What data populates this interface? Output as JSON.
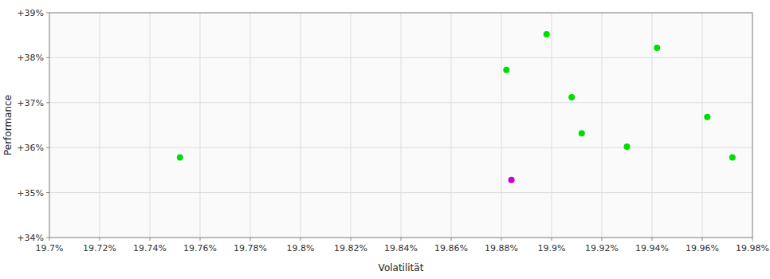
{
  "chart_data": {
    "type": "scatter",
    "xlabel": "Volatilität",
    "ylabel": "Performance",
    "xlim": [
      19.7,
      19.98
    ],
    "ylim": [
      34.0,
      39.0
    ],
    "xticks": [
      {
        "value": 19.7,
        "label": "19.7%"
      },
      {
        "value": 19.72,
        "label": "19.72%"
      },
      {
        "value": 19.74,
        "label": "19.74%"
      },
      {
        "value": 19.76,
        "label": "19.76%"
      },
      {
        "value": 19.78,
        "label": "19.78%"
      },
      {
        "value": 19.8,
        "label": "19.8%"
      },
      {
        "value": 19.82,
        "label": "19.82%"
      },
      {
        "value": 19.84,
        "label": "19.84%"
      },
      {
        "value": 19.86,
        "label": "19.86%"
      },
      {
        "value": 19.88,
        "label": "19.88%"
      },
      {
        "value": 19.9,
        "label": "19.9%"
      },
      {
        "value": 19.92,
        "label": "19.92%"
      },
      {
        "value": 19.94,
        "label": "19.94%"
      },
      {
        "value": 19.96,
        "label": "19.96%"
      },
      {
        "value": 19.98,
        "label": "19.98%"
      }
    ],
    "yticks": [
      {
        "value": 34,
        "label": "+34%"
      },
      {
        "value": 35,
        "label": "+35%"
      },
      {
        "value": 36,
        "label": "+36%"
      },
      {
        "value": 37,
        "label": "+37%"
      },
      {
        "value": 38,
        "label": "+38%"
      },
      {
        "value": 39,
        "label": "+39%"
      }
    ],
    "grid": true,
    "series": [
      {
        "color": "#00dd00",
        "x": [
          19.752,
          19.882,
          19.898,
          19.908,
          19.912,
          19.93,
          19.942,
          19.962,
          19.972
        ],
        "values": [
          35.78,
          37.73,
          38.52,
          37.12,
          36.32,
          36.02,
          38.22,
          36.68,
          35.78
        ]
      },
      {
        "color": "#cc00cc",
        "x": [
          19.884
        ],
        "values": [
          35.28
        ]
      }
    ]
  }
}
